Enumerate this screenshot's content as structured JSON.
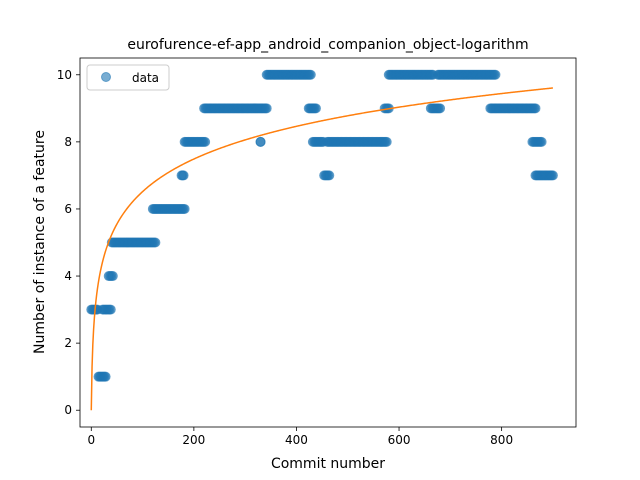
{
  "chart_data": {
    "type": "scatter",
    "title": "eurofurence-ef-app_android_companion_object-logarithm",
    "xlabel": "Commit number",
    "ylabel": "Number of instance of a feature",
    "xlim": [
      -22,
      945
    ],
    "ylim": [
      -0.5,
      10.5
    ],
    "x_ticks": [
      0,
      200,
      400,
      600,
      800
    ],
    "y_ticks": [
      0,
      2,
      4,
      6,
      8,
      10
    ],
    "grid": false,
    "legend": {
      "entries": [
        "data"
      ],
      "placement": "upper-left"
    },
    "colors": {
      "data": "#1f77b4",
      "fit": "#ff7f0e"
    },
    "series": [
      {
        "name": "data",
        "kind": "scatter",
        "segments": [
          {
            "x_start": 0,
            "x_end": 12,
            "y": 3
          },
          {
            "x_start": 14,
            "x_end": 28,
            "y": 1
          },
          {
            "x_start": 22,
            "x_end": 38,
            "y": 3
          },
          {
            "x_start": 34,
            "x_end": 42,
            "y": 4
          },
          {
            "x_start": 40,
            "x_end": 125,
            "y": 5
          },
          {
            "x_start": 120,
            "x_end": 182,
            "y": 6
          },
          {
            "x_start": 176,
            "x_end": 180,
            "y": 7
          },
          {
            "x_start": 182,
            "x_end": 222,
            "y": 8
          },
          {
            "x_start": 220,
            "x_end": 342,
            "y": 9
          },
          {
            "x_start": 330,
            "x_end": 330,
            "y": 8
          },
          {
            "x_start": 342,
            "x_end": 428,
            "y": 10
          },
          {
            "x_start": 424,
            "x_end": 438,
            "y": 9
          },
          {
            "x_start": 432,
            "x_end": 452,
            "y": 8
          },
          {
            "x_start": 454,
            "x_end": 464,
            "y": 7
          },
          {
            "x_start": 460,
            "x_end": 576,
            "y": 8
          },
          {
            "x_start": 572,
            "x_end": 580,
            "y": 9
          },
          {
            "x_start": 580,
            "x_end": 666,
            "y": 10
          },
          {
            "x_start": 662,
            "x_end": 680,
            "y": 9
          },
          {
            "x_start": 676,
            "x_end": 788,
            "y": 10
          },
          {
            "x_start": 778,
            "x_end": 866,
            "y": 9
          },
          {
            "x_start": 860,
            "x_end": 878,
            "y": 8
          },
          {
            "x_start": 866,
            "x_end": 900,
            "y": 7
          }
        ]
      },
      {
        "kind": "line",
        "x_start": 0,
        "x_end": 900,
        "fit": {
          "form": "a*ln(x+1)",
          "a": 1.412
        }
      }
    ]
  }
}
